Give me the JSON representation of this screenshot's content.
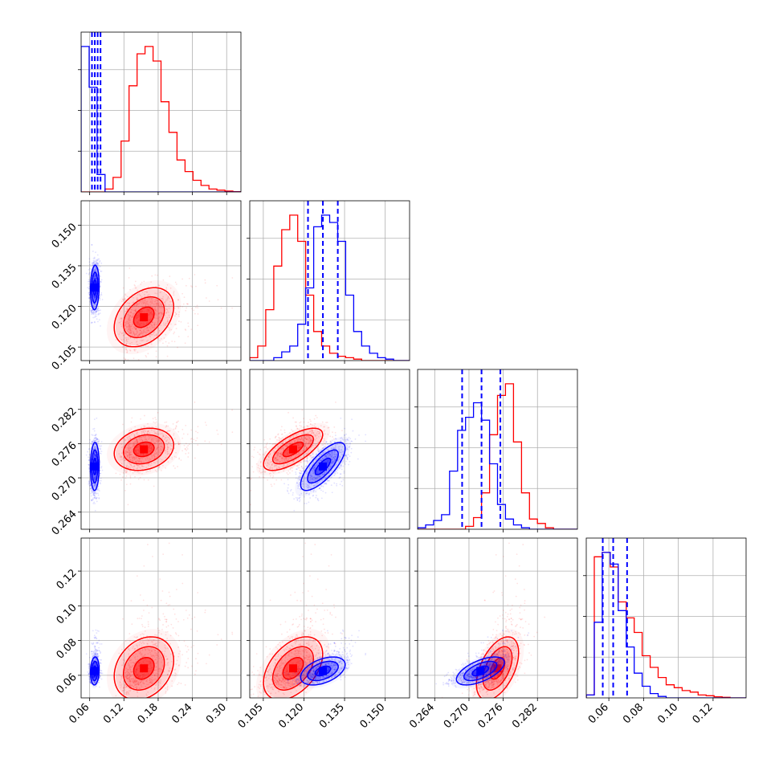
{
  "colors": {
    "series_a": "#ff0000",
    "series_b": "#0000ff",
    "grid": "#b0b0b0",
    "axes": "#000000"
  },
  "chart_data": {
    "type": "corner",
    "grid": true,
    "parameters": [
      {
        "ticks": [
          0.06,
          0.12,
          0.18,
          0.24,
          0.3
        ],
        "tick_labels": [
          "0.06",
          "0.12",
          "0.18",
          "0.24",
          "0.30"
        ],
        "range": [
          0.045,
          0.325
        ]
      },
      {
        "ticks": [
          0.105,
          0.12,
          0.135,
          0.15
        ],
        "tick_labels": [
          "0.105",
          "0.120",
          "0.135",
          "0.150"
        ],
        "range": [
          0.1,
          0.159
        ]
      },
      {
        "ticks": [
          0.264,
          0.27,
          0.276,
          0.282
        ],
        "tick_labels": [
          "0.264",
          "0.270",
          "0.276",
          "0.282"
        ],
        "range": [
          0.261,
          0.289
        ]
      },
      {
        "ticks": [
          0.06,
          0.08,
          0.1,
          0.12
        ],
        "tick_labels": [
          "0.06",
          "0.08",
          "0.10",
          "0.12"
        ],
        "range": [
          0.047,
          0.139
        ]
      }
    ],
    "series": [
      {
        "color": "#ff0000",
        "means": [
          0.155,
          0.116,
          0.275,
          0.064
        ],
        "sds": [
          0.031,
          0.0065,
          0.0022,
          0.0108
        ],
        "correlations": [
          [
            0,
            1,
            0.35
          ],
          [
            0,
            2,
            0.2
          ],
          [
            0,
            3,
            0.25
          ],
          [
            1,
            2,
            0.7
          ],
          [
            1,
            3,
            0.45
          ],
          [
            2,
            3,
            0.5
          ]
        ],
        "quantiles": [],
        "hist": [
          {
            "edges": [
              0.045,
              0.325
            ],
            "counts": [
              0,
              0,
              0,
              0.02,
              0.1,
              0.35,
              0.73,
              0.95,
              1.0,
              0.9,
              0.62,
              0.41,
              0.22,
              0.14,
              0.08,
              0.045,
              0.02,
              0.012,
              0.006,
              0.002
            ]
          },
          {
            "edges": [
              0.1,
              0.159
            ],
            "counts": [
              0.02,
              0.1,
              0.35,
              0.65,
              0.9,
              1.0,
              0.82,
              0.45,
              0.2,
              0.1,
              0.05,
              0.03,
              0.02,
              0.01,
              0,
              0,
              0,
              0,
              0,
              0
            ]
          },
          {
            "edges": [
              0.261,
              0.289
            ],
            "counts": [
              0,
              0,
              0,
              0,
              0,
              0,
              0.02,
              0.08,
              0.25,
              0.65,
              0.92,
              1.0,
              0.6,
              0.25,
              0.07,
              0.04,
              0.01,
              0,
              0,
              0
            ]
          },
          {
            "edges": [
              0.047,
              0.139
            ],
            "counts": [
              0.02,
              0.97,
              1.0,
              0.9,
              0.66,
              0.55,
              0.45,
              0.29,
              0.21,
              0.14,
              0.09,
              0.07,
              0.05,
              0.04,
              0.02,
              0.015,
              0.008,
              0.004,
              0,
              0
            ]
          }
        ]
      },
      {
        "color": "#0000ff",
        "means": [
          0.069,
          0.127,
          0.272,
          0.0625
        ],
        "sds": [
          0.0045,
          0.0049,
          0.0025,
          0.0048
        ],
        "correlations": [
          [
            0,
            1,
            0.1
          ],
          [
            0,
            2,
            0.05
          ],
          [
            0,
            3,
            0.1
          ],
          [
            1,
            2,
            0.75
          ],
          [
            1,
            3,
            0.45
          ],
          [
            2,
            3,
            0.6
          ]
        ],
        "quantiles": [
          [
            0.064,
            0.069,
            0.074,
            0.079
          ],
          [
            0.1215,
            0.127,
            0.1325
          ],
          [
            0.2688,
            0.2722,
            0.2755
          ],
          [
            0.0565,
            0.0625,
            0.0705
          ]
        ],
        "hist": [
          {
            "edges": [
              0.045,
              0.325
            ],
            "counts": [
              1.0,
              0.72,
              0.12,
              0,
              0,
              0,
              0,
              0,
              0,
              0,
              0,
              0,
              0,
              0,
              0,
              0,
              0,
              0,
              0,
              0
            ]
          },
          {
            "edges": [
              0.1,
              0.159
            ],
            "counts": [
              0,
              0,
              0,
              0.02,
              0.06,
              0.1,
              0.25,
              0.5,
              0.92,
              1.0,
              0.95,
              0.82,
              0.45,
              0.2,
              0.1,
              0.05,
              0.02,
              0.01,
              0,
              0
            ]
          },
          {
            "edges": [
              0.261,
              0.289
            ],
            "counts": [
              0.01,
              0.03,
              0.06,
              0.1,
              0.4,
              0.68,
              0.77,
              0.87,
              0.75,
              0.45,
              0.17,
              0.07,
              0.03,
              0.01,
              0,
              0,
              0,
              0,
              0,
              0
            ]
          },
          {
            "edges": [
              0.047,
              0.139
            ],
            "counts": [
              0.02,
              0.52,
              1.0,
              0.92,
              0.6,
              0.35,
              0.17,
              0.08,
              0.03,
              0.01,
              0,
              0,
              0,
              0,
              0,
              0,
              0,
              0,
              0,
              0
            ]
          }
        ]
      }
    ]
  }
}
